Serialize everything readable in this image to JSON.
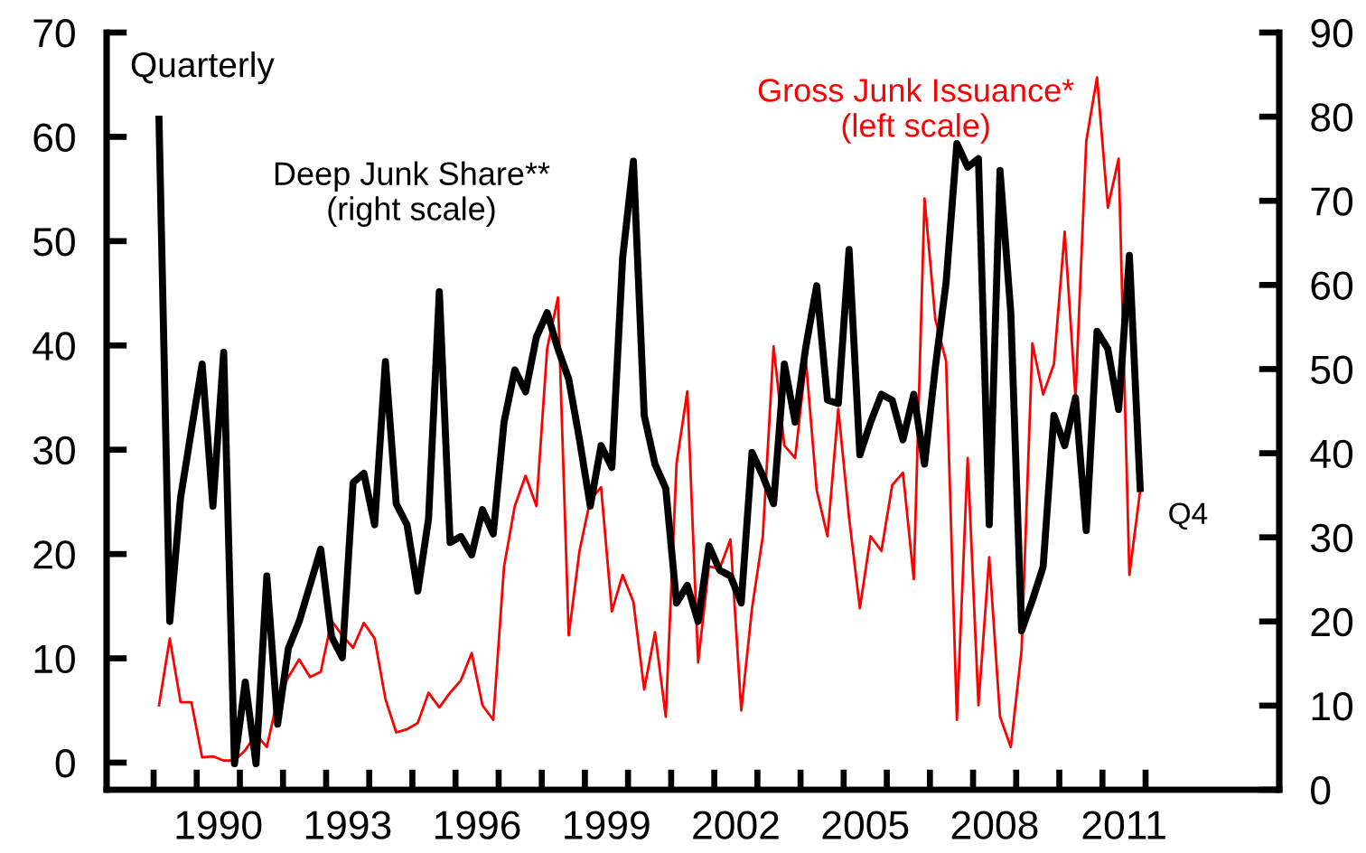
{
  "chart_data": {
    "type": "line",
    "x": [
      1989.125,
      1989.375,
      1989.625,
      1989.875,
      1990.125,
      1990.375,
      1990.625,
      1990.875,
      1991.125,
      1991.375,
      1991.625,
      1991.875,
      1992.125,
      1992.375,
      1992.625,
      1992.875,
      1993.125,
      1993.375,
      1993.625,
      1993.875,
      1994.125,
      1994.375,
      1994.625,
      1994.875,
      1995.125,
      1995.375,
      1995.625,
      1995.875,
      1996.125,
      1996.375,
      1996.625,
      1996.875,
      1997.125,
      1997.375,
      1997.625,
      1997.875,
      1998.125,
      1998.375,
      1998.625,
      1998.875,
      1999.125,
      1999.375,
      1999.625,
      1999.875,
      2000.125,
      2000.375,
      2000.625,
      2000.875,
      2001.125,
      2001.375,
      2001.625,
      2001.875,
      2002.125,
      2002.375,
      2002.625,
      2002.875,
      2003.125,
      2003.375,
      2003.625,
      2003.875,
      2004.125,
      2004.375,
      2004.625,
      2004.875,
      2005.125,
      2005.375,
      2005.625,
      2005.875,
      2006.125,
      2006.375,
      2006.625,
      2006.875,
      2007.125,
      2007.375,
      2007.625,
      2007.875,
      2008.125,
      2008.375,
      2008.625,
      2008.875,
      2009.125,
      2009.375,
      2009.625,
      2009.875,
      2010.125,
      2010.375,
      2010.625,
      2010.875,
      2011.125,
      2011.375,
      2011.625,
      2011.875
    ],
    "series": [
      {
        "name": "Gross Junk Issuance*\n(left scale)",
        "color": "#ff0000",
        "axis": "y",
        "values": [
          5.5,
          11.9,
          5.8,
          5.8,
          0.5,
          0.6,
          0.2,
          0.2,
          1.2,
          2.7,
          1.5,
          6.1,
          8.2,
          9.9,
          8.2,
          8.7,
          13.6,
          12.2,
          11,
          13.4,
          11.9,
          6.1,
          2.9,
          3.2,
          3.8,
          6.7,
          5.3,
          6.7,
          7.9,
          10.5,
          5.5,
          4.1,
          18.8,
          24.6,
          27.5,
          24.6,
          39.7,
          44.6,
          12.2,
          20.3,
          25.2,
          26.4,
          14.5,
          18,
          15.4,
          7,
          12.5,
          4.4,
          28.7,
          35.6,
          9.6,
          18.8,
          18.6,
          21.4,
          5,
          14.8,
          21.7,
          39.9,
          30.4,
          29.2,
          38.5,
          26.1,
          21.7,
          33.9,
          23.5,
          14.8,
          21.7,
          20.3,
          26.6,
          27.8,
          17.6,
          54.1,
          42.5,
          38.5,
          4.1,
          29.2,
          5.5,
          19.7,
          4.4,
          1.5,
          10.8,
          40.2,
          35.3,
          38.2,
          50.9,
          35,
          59.6,
          65.7,
          53.2,
          57.9,
          18,
          26.1
        ]
      },
      {
        "name": "Deep Junk Share**\n(right scale)",
        "color": "#000000",
        "axis": "y2",
        "values": [
          79.7,
          20,
          34.7,
          42.7,
          50.6,
          33.7,
          52,
          3.1,
          12.8,
          3.1,
          25.4,
          7.8,
          16.8,
          20,
          24.3,
          28.6,
          18.2,
          15.7,
          36.5,
          37.6,
          31.5,
          50.9,
          34,
          31.5,
          23.6,
          32.2,
          59.2,
          29.4,
          30.1,
          27.9,
          33.3,
          30.4,
          43.7,
          49.9,
          47.3,
          53.8,
          56.7,
          52.4,
          48.8,
          41.6,
          33.7,
          40.9,
          38.3,
          63.2,
          74.7,
          44.5,
          38.7,
          35.8,
          22.2,
          24.3,
          20,
          29,
          26.1,
          25.4,
          22.2,
          40.1,
          37.3,
          34,
          50.6,
          43.7,
          52.7,
          59.9,
          46.3,
          45.9,
          64.2,
          39.8,
          43.7,
          47,
          46.3,
          41.6,
          47,
          38.7,
          50.2,
          60.3,
          76.8,
          74,
          75,
          31.5,
          73.6,
          56.7,
          18.9,
          22.5,
          26.5,
          44.5,
          40.9,
          46.6,
          30.8,
          54.5,
          52.4,
          45.2,
          63.5,
          35.8
        ]
      }
    ],
    "xlim": [
      1987.91,
      2015.1
    ],
    "xticks": [
      {
        "value": 1989,
        "label": null
      },
      {
        "value": 1990,
        "label": null
      },
      {
        "value": 1990.5,
        "label": "1990"
      },
      {
        "value": 1991,
        "label": null
      },
      {
        "value": 1992,
        "label": null
      },
      {
        "value": 1993,
        "label": null
      },
      {
        "value": 1993.5,
        "label": "1993"
      },
      {
        "value": 1994,
        "label": null
      },
      {
        "value": 1995,
        "label": null
      },
      {
        "value": 1996,
        "label": null
      },
      {
        "value": 1996.5,
        "label": "1996"
      },
      {
        "value": 1997,
        "label": null
      },
      {
        "value": 1998,
        "label": null
      },
      {
        "value": 1999,
        "label": null
      },
      {
        "value": 1999.5,
        "label": "1999"
      },
      {
        "value": 2000,
        "label": null
      },
      {
        "value": 2001,
        "label": null
      },
      {
        "value": 2002,
        "label": null
      },
      {
        "value": 2002.5,
        "label": "2002"
      },
      {
        "value": 2003,
        "label": null
      },
      {
        "value": 2004,
        "label": null
      },
      {
        "value": 2005,
        "label": null
      },
      {
        "value": 2005.5,
        "label": "2005"
      },
      {
        "value": 2006,
        "label": null
      },
      {
        "value": 2007,
        "label": null
      },
      {
        "value": 2008,
        "label": null
      },
      {
        "value": 2008.5,
        "label": "2008"
      },
      {
        "value": 2009,
        "label": null
      },
      {
        "value": 2010,
        "label": null
      },
      {
        "value": 2011,
        "label": null
      },
      {
        "value": 2011.5,
        "label": "2011"
      },
      {
        "value": 2012,
        "label": null
      }
    ],
    "ylim": [
      -2.6,
      70
    ],
    "yticks": [
      0,
      10,
      20,
      30,
      40,
      50,
      60,
      70
    ],
    "y2lim": [
      0,
      90
    ],
    "y2ticks": [
      0,
      10,
      20,
      30,
      40,
      50,
      60,
      70,
      80,
      90
    ],
    "annotations": [
      "Quarterly",
      "Q4"
    ],
    "grid": false,
    "legend": false,
    "marker": "none",
    "line_style": "solid"
  }
}
